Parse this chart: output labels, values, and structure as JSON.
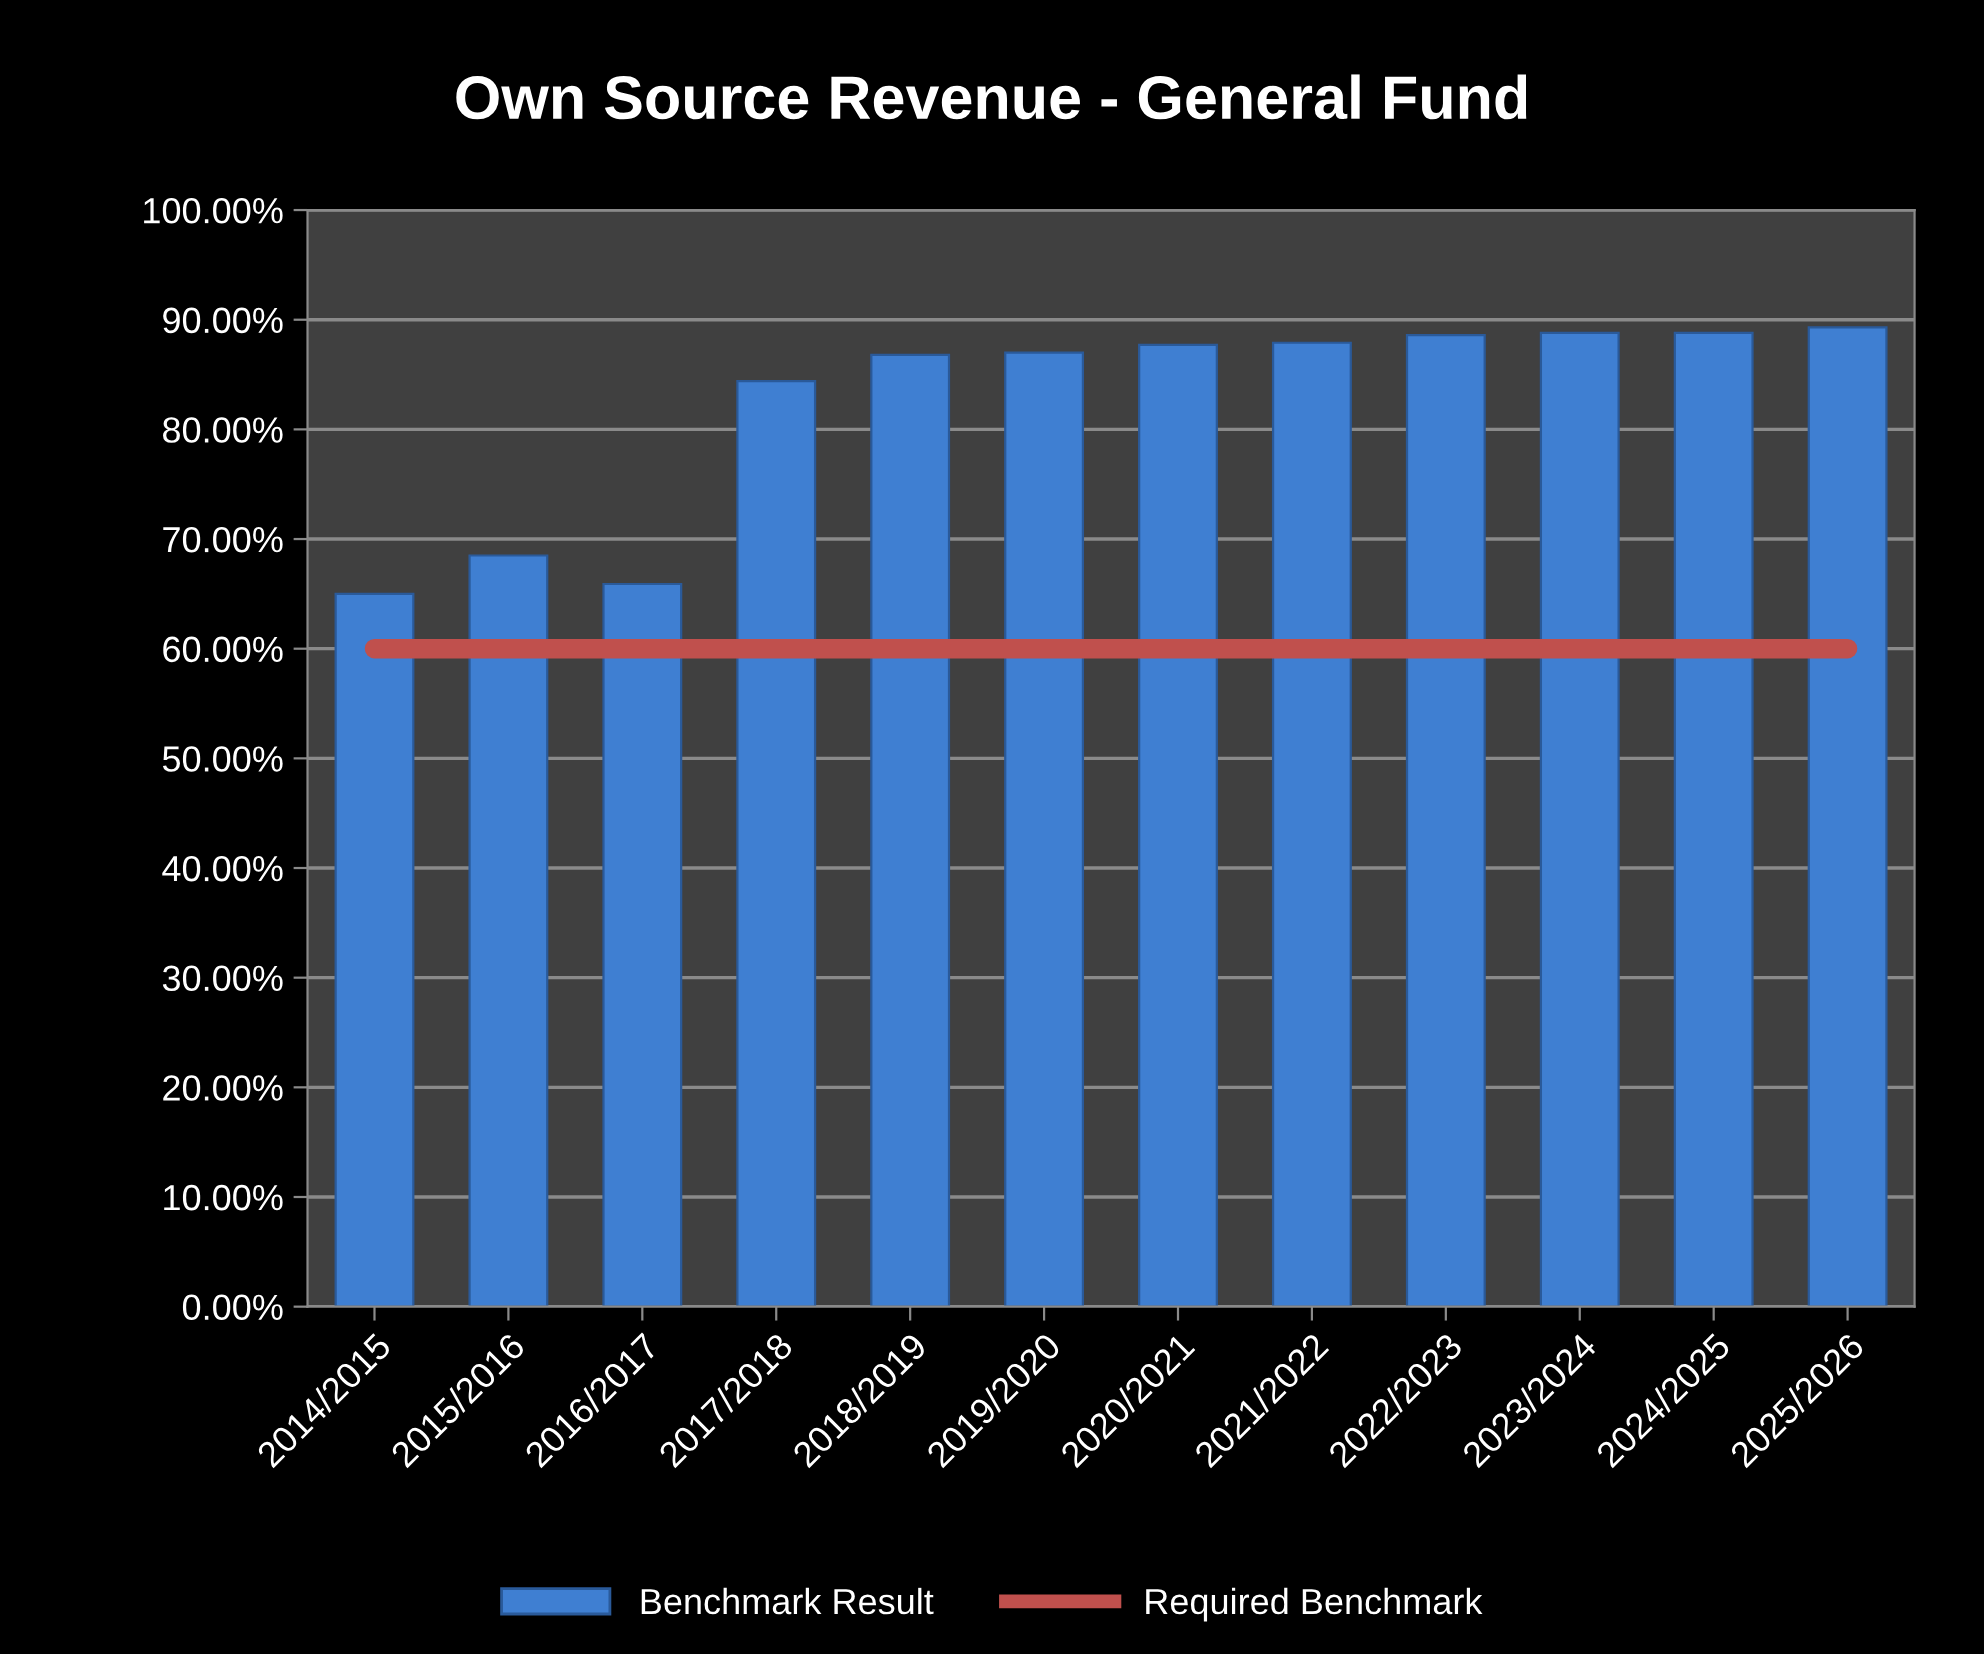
{
  "chart_data": {
    "type": "bar",
    "title": "Own Source Revenue - General Fund",
    "categories": [
      "2014/2015",
      "2015/2016",
      "2016/2017",
      "2017/2018",
      "2018/2019",
      "2019/2020",
      "2020/2021",
      "2021/2022",
      "2022/2023",
      "2023/2024",
      "2024/2025",
      "2025/2026"
    ],
    "series": [
      {
        "name": "Benchmark Result",
        "color": "#3f7fd2",
        "values": [
          65.0,
          68.5,
          65.9,
          84.4,
          86.8,
          87.0,
          87.7,
          87.9,
          88.6,
          88.8,
          88.8,
          89.3
        ]
      },
      {
        "name": "Required Benchmark",
        "type": "line",
        "color": "#c0504d",
        "values": [
          60,
          60,
          60,
          60,
          60,
          60,
          60,
          60,
          60,
          60,
          60,
          60
        ]
      }
    ],
    "ylim": [
      0,
      100
    ],
    "yticks": [
      {
        "value": 0,
        "label": "0.00%"
      },
      {
        "value": 10,
        "label": "10.00%"
      },
      {
        "value": 20,
        "label": "20.00%"
      },
      {
        "value": 30,
        "label": "30.00%"
      },
      {
        "value": 40,
        "label": "40.00%"
      },
      {
        "value": 50,
        "label": "50.00%"
      },
      {
        "value": 60,
        "label": "60.00%"
      },
      {
        "value": 70,
        "label": "70.00%"
      },
      {
        "value": 80,
        "label": "80.00%"
      },
      {
        "value": 90,
        "label": "90.00%"
      },
      {
        "value": 100,
        "label": "100.00%"
      }
    ],
    "grid": "y",
    "legend": "bottom",
    "marker": "none"
  }
}
